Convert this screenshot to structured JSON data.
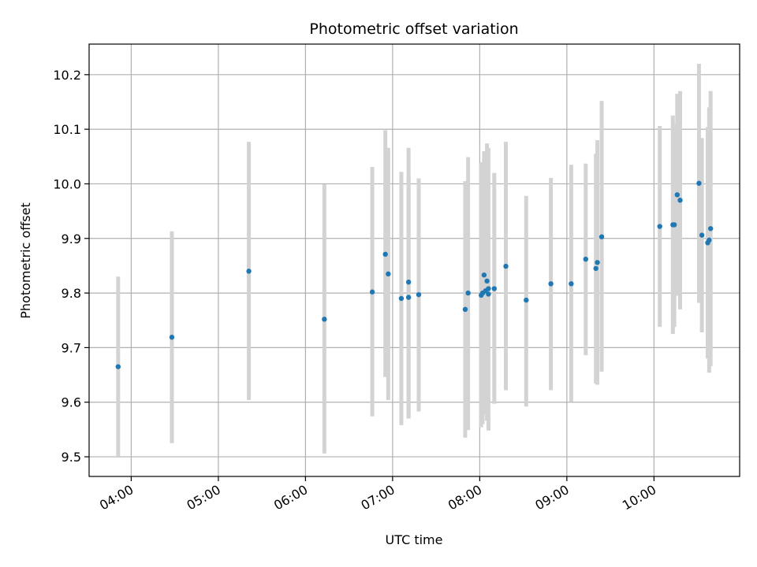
{
  "chart_data": {
    "type": "scatter",
    "title": "Photometric offset variation",
    "xlabel": "UTC time",
    "ylabel": "Photometric offset",
    "x_is_time": true,
    "xlim": [
      "03:31",
      "10:59"
    ],
    "ylim": [
      9.464,
      10.256
    ],
    "x_ticks": [
      "04:00",
      "05:00",
      "06:00",
      "07:00",
      "08:00",
      "09:00",
      "10:00"
    ],
    "y_ticks": [
      9.5,
      9.6,
      9.7,
      9.8,
      9.9,
      10.0,
      10.1,
      10.2
    ],
    "y_tick_labels": [
      "9.5",
      "9.6",
      "9.7",
      "9.8",
      "9.9",
      "10.0",
      "10.1",
      "10.2"
    ],
    "grid": true,
    "colors": {
      "points": "#1f77b4",
      "errorbars": "#d3d3d3",
      "grid": "#b0b0b0"
    },
    "points": [
      {
        "t": "03:51",
        "y": 9.665,
        "lo": 9.5,
        "hi": 9.83
      },
      {
        "t": "04:28",
        "y": 9.719,
        "lo": 9.525,
        "hi": 9.913
      },
      {
        "t": "05:21",
        "y": 9.84,
        "lo": 9.604,
        "hi": 10.077
      },
      {
        "t": "06:13",
        "y": 9.752,
        "lo": 9.506,
        "hi": 9.999
      },
      {
        "t": "06:46",
        "y": 9.802,
        "lo": 9.574,
        "hi": 10.031
      },
      {
        "t": "06:55",
        "y": 9.871,
        "lo": 9.646,
        "hi": 10.098
      },
      {
        "t": "06:57",
        "y": 9.835,
        "lo": 9.604,
        "hi": 10.066
      },
      {
        "t": "07:06",
        "y": 9.79,
        "lo": 9.558,
        "hi": 10.022
      },
      {
        "t": "07:11",
        "y": 9.82,
        "lo": 9.573,
        "hi": 10.066
      },
      {
        "t": "07:11",
        "y": 9.792,
        "lo": 9.57,
        "hi": 10.014
      },
      {
        "t": "07:18",
        "y": 9.797,
        "lo": 9.583,
        "hi": 10.01
      },
      {
        "t": "07:50",
        "y": 9.77,
        "lo": 9.535,
        "hi": 10.005
      },
      {
        "t": "07:52",
        "y": 9.8,
        "lo": 9.549,
        "hi": 10.049
      },
      {
        "t": "08:01",
        "y": 9.796,
        "lo": 9.554,
        "hi": 10.038
      },
      {
        "t": "08:02",
        "y": 9.8,
        "lo": 9.56,
        "hi": 10.04
      },
      {
        "t": "08:03",
        "y": 9.833,
        "lo": 9.578,
        "hi": 10.06
      },
      {
        "t": "08:04",
        "y": 9.804,
        "lo": 9.582,
        "hi": 10.026
      },
      {
        "t": "08:05",
        "y": 9.822,
        "lo": 9.566,
        "hi": 10.074
      },
      {
        "t": "08:06",
        "y": 9.808,
        "lo": 9.553,
        "hi": 10.06
      },
      {
        "t": "08:06",
        "y": 9.798,
        "lo": 9.548,
        "hi": 10.066
      },
      {
        "t": "08:10",
        "y": 9.808,
        "lo": 9.597,
        "hi": 10.02
      },
      {
        "t": "08:18",
        "y": 9.849,
        "lo": 9.622,
        "hi": 10.077
      },
      {
        "t": "08:32",
        "y": 9.787,
        "lo": 9.592,
        "hi": 9.978
      },
      {
        "t": "08:49",
        "y": 9.817,
        "lo": 9.622,
        "hi": 10.011
      },
      {
        "t": "09:03",
        "y": 9.817,
        "lo": 9.601,
        "hi": 10.035
      },
      {
        "t": "09:13",
        "y": 9.862,
        "lo": 9.686,
        "hi": 10.037
      },
      {
        "t": "09:20",
        "y": 9.845,
        "lo": 9.634,
        "hi": 10.055
      },
      {
        "t": "09:21",
        "y": 9.856,
        "lo": 9.632,
        "hi": 10.08
      },
      {
        "t": "09:24",
        "y": 9.903,
        "lo": 9.656,
        "hi": 10.152
      },
      {
        "t": "10:04",
        "y": 9.922,
        "lo": 9.738,
        "hi": 10.106
      },
      {
        "t": "10:13",
        "y": 9.925,
        "lo": 9.725,
        "hi": 10.125
      },
      {
        "t": "10:14",
        "y": 9.925,
        "lo": 9.738,
        "hi": 10.109
      },
      {
        "t": "10:16",
        "y": 9.98,
        "lo": 9.795,
        "hi": 10.165
      },
      {
        "t": "10:18",
        "y": 9.97,
        "lo": 9.77,
        "hi": 10.17
      },
      {
        "t": "10:31",
        "y": 10.001,
        "lo": 9.782,
        "hi": 10.22
      },
      {
        "t": "10:33",
        "y": 9.906,
        "lo": 9.728,
        "hi": 10.084
      },
      {
        "t": "10:37",
        "y": 9.892,
        "lo": 9.68,
        "hi": 10.104
      },
      {
        "t": "10:38",
        "y": 9.897,
        "lo": 9.654,
        "hi": 10.14
      },
      {
        "t": "10:39",
        "y": 9.918,
        "lo": 9.666,
        "hi": 10.17
      }
    ]
  }
}
